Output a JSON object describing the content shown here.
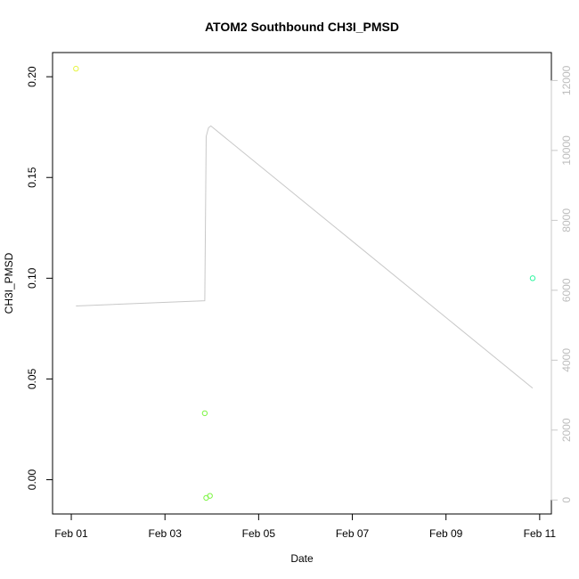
{
  "chart_data": {
    "type": "scatter",
    "title": "ATOM2 Southbound CH3I_PMSD",
    "xlabel": "Date",
    "ylabel": "CH3I_PMSD",
    "x_ticks": [
      "Feb 01",
      "Feb 03",
      "Feb 05",
      "Feb 07",
      "Feb 09",
      "Feb 11"
    ],
    "x_tick_values": [
      0,
      2,
      4,
      6,
      8,
      10
    ],
    "xlim": [
      -0.4,
      10.25
    ],
    "ylim": [
      -0.017,
      0.212
    ],
    "y_ticks": [
      "0.00",
      "0.05",
      "0.10",
      "0.15",
      "0.20"
    ],
    "y_tick_values": [
      0.0,
      0.05,
      0.1,
      0.15,
      0.2
    ],
    "y2lim": [
      -400,
      12800
    ],
    "y2_ticks": [
      "0",
      "2000",
      "4000",
      "6000",
      "8000",
      "10000",
      "12000"
    ],
    "y2_tick_values": [
      0,
      2000,
      4000,
      6000,
      8000,
      10000,
      12000
    ],
    "points": [
      {
        "x": 0.1,
        "y": 0.204,
        "color": "#e6f542"
      },
      {
        "x": 2.85,
        "y": 0.033,
        "color": "#7cf542"
      },
      {
        "x": 2.88,
        "y": -0.009,
        "color": "#7cf542"
      },
      {
        "x": 2.96,
        "y": -0.008,
        "color": "#7cf542"
      },
      {
        "x": 9.85,
        "y": 0.1,
        "color": "#2ef5a0"
      }
    ],
    "secondary_line": {
      "color": "#c8c8c8",
      "x": [
        0.1,
        2.85,
        2.88,
        2.93,
        2.98,
        9.85
      ],
      "y": [
        5550,
        5700,
        10400,
        10650,
        10700,
        3200
      ]
    },
    "grid": false,
    "legend": "none"
  }
}
